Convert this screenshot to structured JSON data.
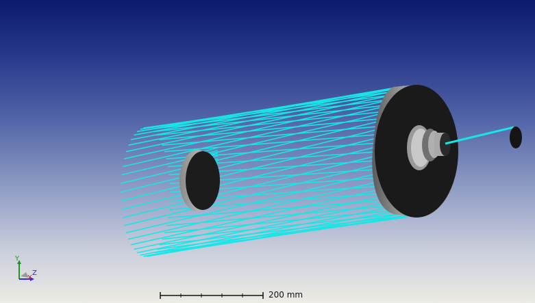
{
  "colors": {
    "ray": "#18e6e6",
    "part_dark": "#1a1a1a",
    "part_rim": "#7e7e7e",
    "triad_x": "#c41818",
    "triad_y": "#1a9a1a",
    "triad_z": "#2a2ae0"
  },
  "triad": {
    "y_label": "Y",
    "x_label": "X",
    "z_label": "Z"
  },
  "scale_bar": {
    "label": "200 mm"
  },
  "icons": [
    "coordinate-triad-icon"
  ]
}
